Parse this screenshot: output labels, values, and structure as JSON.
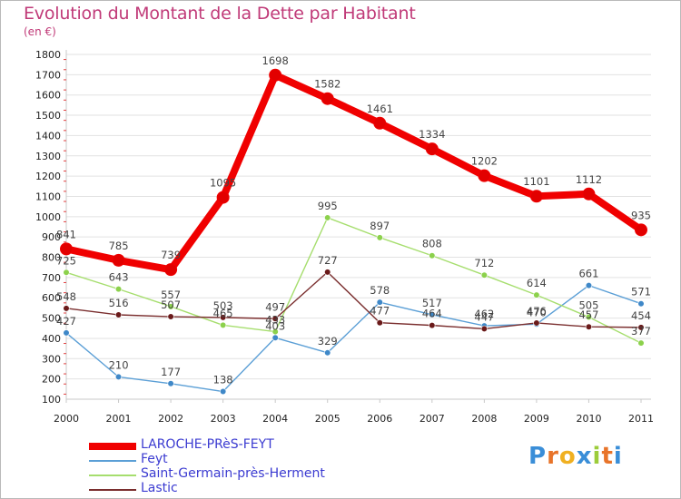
{
  "header": {
    "title": "Evolution du Montant de la Dette par Habitant",
    "unit": "(en €)"
  },
  "brand": {
    "letters": [
      "P",
      "r",
      "o",
      "x",
      "i",
      "t",
      "i"
    ]
  },
  "colors": {
    "title": "#c03a78",
    "legend_text": "#3b3bd1",
    "grid": "#e2e2e2",
    "axis": "#c9c9c9",
    "tick_marks": "#e24040",
    "brand": [
      "#3a8ed8",
      "#e8742a",
      "#f0b021",
      "#3a8ed8",
      "#9ccc3a",
      "#e8742a",
      "#3a8ed8"
    ]
  },
  "chart_data": {
    "type": "line",
    "title": "Evolution du Montant de la Dette par Habitant",
    "subtitle": "(en €)",
    "x": [
      "2000",
      "2001",
      "2002",
      "2003",
      "2004",
      "2005",
      "2006",
      "2007",
      "2008",
      "2009",
      "2010",
      "2011"
    ],
    "ylim": [
      100,
      1800
    ],
    "yticks": [
      100,
      200,
      300,
      400,
      500,
      600,
      700,
      800,
      900,
      1000,
      1100,
      1200,
      1300,
      1400,
      1500,
      1600,
      1700,
      1800
    ],
    "grid": "horizontal",
    "legend_position": "bottom-left",
    "series": [
      {
        "name": "LAROCHE-PRèS-FEYT",
        "values": [
          841,
          785,
          739,
          1095,
          1698,
          1582,
          1461,
          1334,
          1202,
          1101,
          1112,
          935
        ],
        "labels": [
          "841",
          "785",
          "739",
          "1095",
          "1698",
          "1582",
          "1461",
          "1334",
          "1202",
          "1101",
          "1112",
          "935"
        ],
        "color": "#f00000",
        "marker_color": "#e20000",
        "emphasis": "thick"
      },
      {
        "name": "Feyt",
        "values": [
          427,
          210,
          177,
          138,
          403,
          329,
          578,
          517,
          462,
          470,
          661,
          571
        ],
        "labels": [
          "427",
          "210",
          "177",
          "138",
          "403",
          "329",
          "578",
          "517",
          "462",
          "470",
          "661",
          "571"
        ],
        "color": "#5b9fd6",
        "marker_color": "#3f88c8",
        "emphasis": "thin"
      },
      {
        "name": "Saint-Germain-près-Herment",
        "values": [
          725,
          643,
          557,
          465,
          433,
          995,
          897,
          808,
          712,
          614,
          505,
          377
        ],
        "labels": [
          "725",
          "643",
          "557",
          "465",
          "433",
          "995",
          "897",
          "808",
          "712",
          "614",
          "505",
          "377"
        ],
        "color": "#a6de6e",
        "marker_color": "#8cd14c",
        "emphasis": "thin"
      },
      {
        "name": "Lastic",
        "values": [
          548,
          516,
          507,
          503,
          497,
          727,
          477,
          464,
          447,
          476,
          457,
          454
        ],
        "labels": [
          "548",
          "516",
          "507",
          "503",
          "497",
          "727",
          "477",
          "464",
          "447",
          "476",
          "457",
          "454"
        ],
        "color": "#7a2e2e",
        "marker_color": "#6a1a1a",
        "emphasis": "thin"
      }
    ]
  }
}
